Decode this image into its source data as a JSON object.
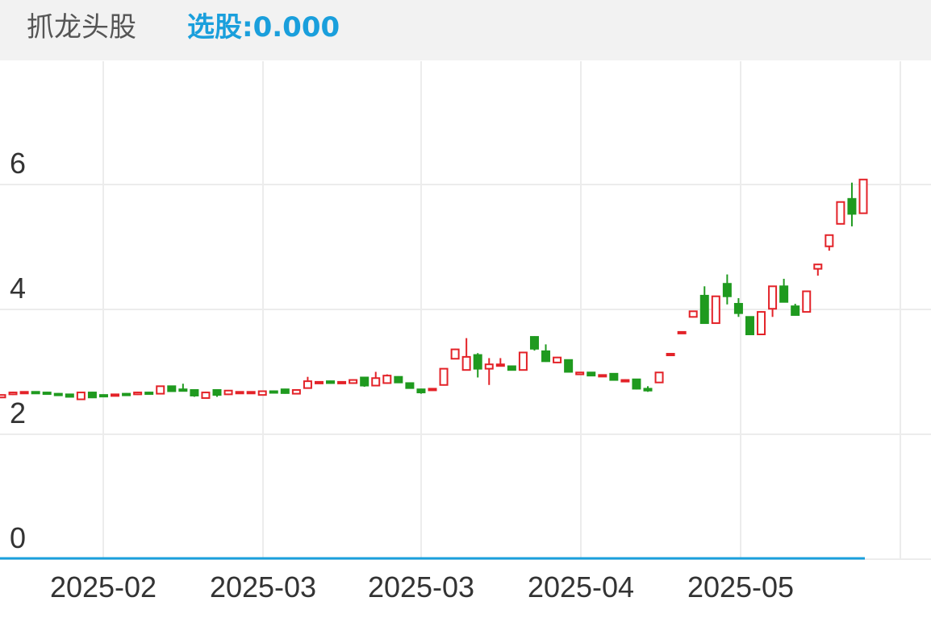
{
  "header": {
    "title": "抓龙头股",
    "indicator": "选股:0.000"
  },
  "chart_data": {
    "type": "candlestick",
    "open": [
      2.59,
      2.64,
      2.67,
      2.68,
      2.67,
      2.65,
      2.64,
      2.56,
      2.67,
      2.63,
      2.62,
      2.65,
      2.64,
      2.67,
      2.65,
      2.77,
      2.72,
      2.71,
      2.58,
      2.71,
      2.64,
      2.67,
      2.66,
      2.63,
      2.69,
      2.72,
      2.65,
      2.74,
      2.83,
      2.85,
      2.82,
      2.82,
      2.91,
      2.78,
      2.82,
      2.92,
      2.82,
      2.72,
      2.71,
      2.79,
      3.21,
      3.03,
      3.27,
      3.05,
      3.1,
      3.09,
      3.03,
      3.56,
      3.33,
      3.15,
      3.19,
      2.96,
      2.99,
      2.94,
      2.97,
      2.86,
      2.88,
      2.73,
      2.83,
      3.28,
      3.62,
      3.88,
      4.22,
      3.78,
      4.41,
      4.09,
      3.88,
      3.6,
      4.01,
      4.37,
      4.05,
      3.96,
      4.65,
      5.01,
      5.37,
      5.77,
      5.54
    ],
    "high": [
      2.64,
      2.68,
      2.69,
      2.69,
      2.68,
      2.66,
      2.65,
      2.67,
      2.68,
      2.64,
      2.65,
      2.66,
      2.68,
      2.68,
      2.78,
      2.78,
      2.81,
      2.72,
      2.68,
      2.72,
      2.71,
      2.69,
      2.69,
      2.69,
      2.7,
      2.73,
      2.72,
      2.92,
      2.85,
      2.86,
      2.85,
      2.88,
      2.92,
      3.0,
      2.96,
      2.93,
      2.83,
      2.73,
      2.74,
      3.05,
      3.37,
      3.54,
      3.3,
      3.22,
      3.22,
      3.1,
      3.31,
      3.57,
      3.44,
      3.24,
      3.2,
      3.0,
      3.0,
      2.96,
      2.98,
      2.88,
      2.89,
      2.77,
      2.99,
      3.29,
      3.64,
      3.98,
      4.37,
      4.22,
      4.56,
      4.18,
      3.89,
      3.97,
      4.38,
      4.49,
      4.09,
      4.3,
      4.73,
      5.19,
      5.72,
      6.03,
      6.08
    ],
    "low": [
      2.58,
      2.63,
      2.66,
      2.66,
      2.64,
      2.62,
      2.59,
      2.55,
      2.58,
      2.61,
      2.61,
      2.63,
      2.63,
      2.64,
      2.64,
      2.68,
      2.69,
      2.6,
      2.57,
      2.6,
      2.63,
      2.66,
      2.65,
      2.62,
      2.67,
      2.65,
      2.64,
      2.73,
      2.82,
      2.81,
      2.81,
      2.81,
      2.76,
      2.77,
      2.81,
      2.82,
      2.73,
      2.65,
      2.7,
      2.78,
      3.2,
      3.02,
      2.91,
      2.79,
      3.09,
      3.02,
      3.02,
      3.34,
      3.16,
      3.14,
      3.0,
      2.95,
      2.94,
      2.93,
      2.87,
      2.85,
      2.72,
      2.68,
      2.82,
      3.27,
      3.61,
      3.87,
      3.77,
      3.77,
      4.08,
      3.88,
      3.59,
      3.59,
      3.88,
      4.11,
      3.9,
      3.95,
      4.54,
      4.94,
      5.36,
      5.33,
      5.53
    ],
    "close": [
      2.63,
      2.67,
      2.68,
      2.67,
      2.65,
      2.63,
      2.6,
      2.67,
      2.59,
      2.62,
      2.64,
      2.64,
      2.67,
      2.65,
      2.77,
      2.69,
      2.7,
      2.62,
      2.67,
      2.63,
      2.7,
      2.68,
      2.68,
      2.69,
      2.68,
      2.66,
      2.71,
      2.85,
      2.84,
      2.82,
      2.84,
      2.87,
      2.78,
      2.9,
      2.94,
      2.83,
      2.74,
      2.67,
      2.73,
      3.05,
      3.36,
      3.24,
      3.05,
      3.12,
      3.12,
      3.03,
      3.31,
      3.37,
      3.17,
      3.23,
      3.0,
      2.99,
      2.94,
      2.95,
      2.87,
      2.87,
      2.73,
      2.7,
      2.99,
      3.29,
      3.64,
      3.97,
      3.78,
      4.21,
      4.21,
      3.94,
      3.6,
      3.96,
      4.37,
      4.12,
      3.91,
      4.29,
      4.72,
      5.19,
      5.72,
      5.53,
      6.08
    ],
    "up_color": "#e32228",
    "down_color": "#1f9a1f",
    "ylim": [
      0,
      8
    ],
    "yticks": [
      0,
      2,
      4,
      6
    ],
    "x_labels": [
      "2025-02",
      "2025-03",
      "2025-03",
      "2025-04",
      "2025-05"
    ],
    "grid": true
  }
}
